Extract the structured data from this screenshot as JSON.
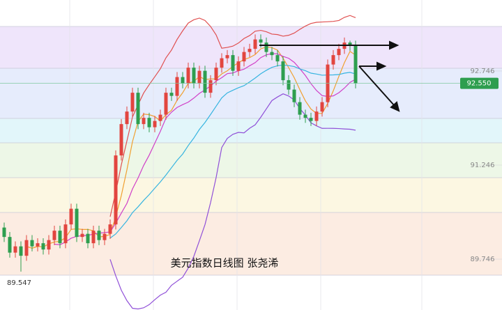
{
  "chart_data": {
    "type": "candlestick",
    "title": "美元指数日线图 张尧浠",
    "open": [
      90.25,
      90.1,
      89.85,
      89.95,
      89.8,
      90.05,
      89.95,
      90.0,
      89.9,
      90.05,
      90.2,
      90.0,
      90.3,
      90.55,
      90.1,
      90.15,
      90.0,
      90.2,
      90.05,
      90.15,
      90.3,
      91.4,
      91.9,
      92.1,
      92.4,
      91.9,
      92.0,
      91.85,
      91.95,
      92.05,
      92.4,
      92.35,
      92.65,
      92.55,
      92.8,
      92.55,
      92.75,
      92.4,
      92.6,
      92.8,
      92.95,
      93.0,
      92.75,
      92.9,
      93.05,
      93.1,
      93.25,
      93.2,
      93.05,
      93.0,
      92.9,
      92.6,
      92.45,
      92.25,
      92.05,
      92.0,
      91.95,
      92.1,
      92.25,
      92.85,
      93.0,
      93.1,
      93.2,
      93.15
    ],
    "high": [
      90.33,
      90.18,
      90.03,
      90.03,
      90.13,
      90.13,
      90.08,
      90.08,
      90.13,
      90.28,
      90.28,
      90.38,
      90.63,
      90.63,
      90.23,
      90.23,
      90.28,
      90.28,
      90.23,
      90.38,
      91.48,
      91.98,
      92.18,
      92.48,
      92.48,
      92.08,
      92.08,
      92.03,
      92.13,
      92.48,
      92.48,
      92.73,
      92.73,
      92.88,
      92.88,
      92.83,
      92.83,
      92.68,
      92.88,
      93.03,
      93.08,
      93.08,
      92.98,
      93.13,
      93.18,
      93.33,
      93.33,
      93.28,
      93.13,
      93.08,
      92.98,
      92.68,
      92.53,
      92.33,
      92.13,
      92.08,
      92.18,
      92.33,
      92.93,
      93.08,
      93.18,
      93.28,
      93.23,
      93.23
    ],
    "low": [
      90.02,
      89.77,
      89.77,
      89.547,
      89.72,
      89.87,
      89.87,
      89.82,
      89.82,
      89.97,
      89.92,
      89.92,
      90.22,
      90.02,
      90.02,
      89.92,
      89.92,
      89.97,
      89.97,
      90.07,
      90.22,
      91.32,
      91.82,
      92.02,
      91.82,
      91.82,
      91.77,
      91.77,
      91.87,
      91.97,
      92.27,
      92.27,
      92.47,
      92.47,
      92.47,
      92.47,
      92.32,
      92.32,
      92.52,
      92.72,
      92.87,
      92.67,
      92.67,
      92.82,
      92.97,
      93.02,
      93.12,
      92.97,
      92.92,
      92.82,
      92.52,
      92.37,
      92.17,
      91.97,
      91.92,
      91.87,
      91.87,
      92.02,
      92.17,
      92.77,
      92.92,
      93.02,
      93.07,
      92.47
    ],
    "close": [
      90.1,
      89.85,
      89.95,
      89.8,
      90.05,
      89.95,
      90.0,
      89.9,
      90.05,
      90.2,
      90.0,
      90.3,
      90.55,
      90.1,
      90.15,
      90.0,
      90.2,
      90.05,
      90.15,
      90.3,
      91.4,
      91.9,
      92.1,
      92.4,
      91.9,
      92.0,
      91.85,
      91.95,
      92.05,
      92.4,
      92.35,
      92.65,
      92.55,
      92.8,
      92.55,
      92.75,
      92.4,
      92.6,
      92.8,
      92.95,
      93.0,
      92.75,
      92.9,
      93.05,
      93.1,
      93.25,
      93.2,
      93.05,
      93.0,
      92.9,
      92.6,
      92.45,
      92.25,
      92.05,
      92.0,
      91.95,
      92.1,
      92.25,
      92.85,
      93.0,
      93.1,
      93.2,
      93.15,
      92.55
    ],
    "up_color": "#e2453f",
    "down_color": "#2e9e4f",
    "overlays": [
      {
        "kind": "ma",
        "period": 5,
        "color": "#f0a030"
      },
      {
        "kind": "ma",
        "period": 10,
        "color": "#d040c8"
      },
      {
        "kind": "bollinger",
        "period": 20,
        "k": 2,
        "color": "#36b4e0",
        "upper_color": "#e05050",
        "lower_color": "#9050d8"
      }
    ],
    "ylim": [
      88.935,
      93.879
    ],
    "yticks": [
      92.746,
      91.246,
      89.746
    ],
    "last_price": {
      "value": 92.55,
      "label": "92.550",
      "color": "#2e9e4f"
    },
    "low_marker": {
      "value": 89.547,
      "label": "89.547"
    }
  }
}
